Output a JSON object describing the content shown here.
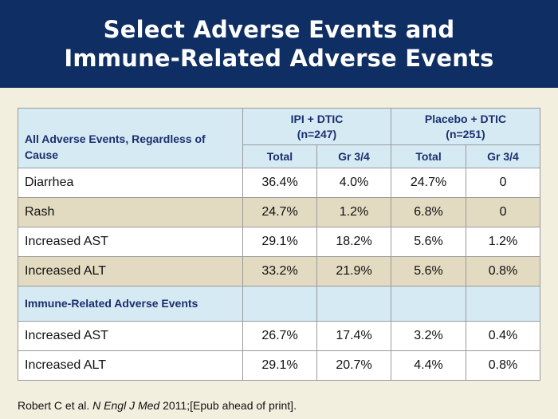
{
  "title": {
    "line1": "Select Adverse Events and",
    "line2": "Immune-Related Adverse Events"
  },
  "table": {
    "header_label": "All Adverse Events, Regardless of Cause",
    "groups": [
      {
        "name": "IPI + DTIC",
        "n": "(n=247)"
      },
      {
        "name": "Placebo + DTIC",
        "n": "(n=251)"
      }
    ],
    "subheaders": [
      "Total",
      "Gr 3/4",
      "Total",
      "Gr 3/4"
    ],
    "all_events": [
      {
        "label": "Diarrhea",
        "values": [
          "36.4%",
          "4.0%",
          "24.7%",
          "0"
        ]
      },
      {
        "label": "Rash",
        "values": [
          "24.7%",
          "1.2%",
          "6.8%",
          "0"
        ]
      },
      {
        "label": "Increased AST",
        "values": [
          "29.1%",
          "18.2%",
          "5.6%",
          "1.2%"
        ]
      },
      {
        "label": "Increased ALT",
        "values": [
          "33.2%",
          "21.9%",
          "5.6%",
          "0.8%"
        ]
      }
    ],
    "immune_section_label": "Immune-Related Adverse Events",
    "immune_events": [
      {
        "label": "Increased AST",
        "values": [
          "26.7%",
          "17.4%",
          "3.2%",
          "0.4%"
        ]
      },
      {
        "label": "Increased ALT",
        "values": [
          "29.1%",
          "20.7%",
          "4.4%",
          "0.8%"
        ]
      }
    ]
  },
  "citation": {
    "authors": "Robert C et al. ",
    "journal": "N Engl J Med",
    "rest": " 2011;[Epub ahead of print]."
  },
  "colors": {
    "title_bar": "#0f2e63",
    "header_bg": "#d6eaf4",
    "header_text": "#1a2f6e",
    "tan_row": "#e2dac1",
    "background": "#f3efdf"
  }
}
